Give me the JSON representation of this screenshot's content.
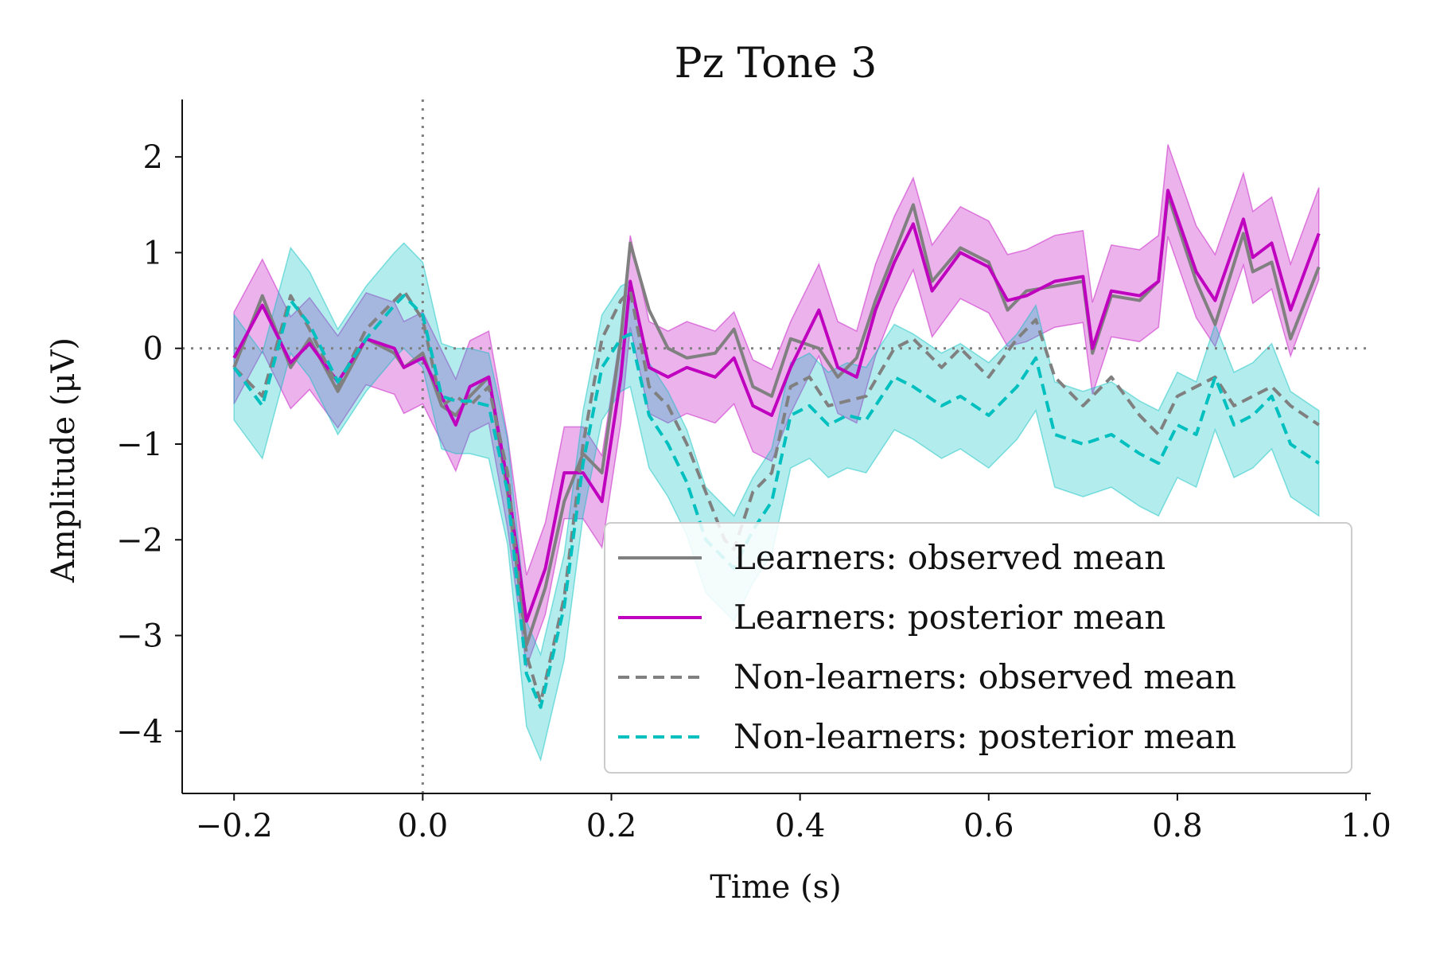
{
  "chart_data": {
    "type": "line",
    "title": "Pz Tone 3",
    "xlabel": "Time (s)",
    "ylabel": "Amplitude (μV)",
    "xlim": [
      -0.255,
      1.005
    ],
    "ylim": [
      -4.65,
      2.6
    ],
    "xticks": [
      -0.2,
      0.0,
      0.2,
      0.4,
      0.6,
      0.8,
      1.0
    ],
    "xtick_labels": [
      "−0.2",
      "0.0",
      "0.2",
      "0.4",
      "0.6",
      "0.8",
      "1.0"
    ],
    "yticks": [
      2,
      1,
      0,
      -1,
      -2,
      -3,
      -4
    ],
    "ytick_labels": [
      "2",
      "1",
      "0",
      "−1",
      "−2",
      "−3",
      "−4"
    ],
    "reference_lines": {
      "x": 0.0,
      "y": 0.0
    },
    "legend_position": "lower-right",
    "series": [
      {
        "name": "Learners: observed mean",
        "color": "#808080",
        "dash": "solid",
        "x": [
          -0.2,
          -0.17,
          -0.14,
          -0.12,
          -0.09,
          -0.06,
          -0.03,
          -0.02,
          0.0,
          0.02,
          0.035,
          0.05,
          0.07,
          0.09,
          0.11,
          0.13,
          0.15,
          0.17,
          0.19,
          0.21,
          0.22,
          0.24,
          0.26,
          0.28,
          0.31,
          0.33,
          0.35,
          0.37,
          0.39,
          0.42,
          0.44,
          0.46,
          0.48,
          0.5,
          0.52,
          0.54,
          0.57,
          0.6,
          0.62,
          0.64,
          0.67,
          0.7,
          0.71,
          0.73,
          0.76,
          0.78,
          0.79,
          0.82,
          0.84,
          0.87,
          0.88,
          0.9,
          0.92,
          0.95
        ],
        "y": [
          -0.2,
          0.55,
          -0.2,
          0.1,
          -0.45,
          0.1,
          -0.05,
          -0.2,
          -0.05,
          -0.6,
          -0.7,
          -0.5,
          -0.3,
          -1.5,
          -3.1,
          -2.5,
          -1.6,
          -1.1,
          -1.3,
          0.1,
          1.1,
          0.4,
          0.0,
          -0.1,
          -0.05,
          0.2,
          -0.4,
          -0.5,
          0.1,
          0.0,
          -0.3,
          -0.1,
          0.5,
          1.0,
          1.5,
          0.7,
          1.05,
          0.9,
          0.4,
          0.6,
          0.65,
          0.7,
          -0.05,
          0.55,
          0.5,
          0.7,
          1.6,
          0.7,
          0.25,
          1.2,
          0.8,
          0.9,
          0.1,
          0.85
        ]
      },
      {
        "name": "Learners: posterior mean",
        "color": "#bf00bf",
        "dash": "solid",
        "x": [
          -0.2,
          -0.17,
          -0.14,
          -0.12,
          -0.09,
          -0.06,
          -0.03,
          -0.02,
          0.0,
          0.02,
          0.035,
          0.05,
          0.07,
          0.09,
          0.11,
          0.13,
          0.15,
          0.17,
          0.19,
          0.21,
          0.22,
          0.24,
          0.26,
          0.28,
          0.31,
          0.33,
          0.35,
          0.37,
          0.39,
          0.42,
          0.44,
          0.46,
          0.48,
          0.5,
          0.52,
          0.54,
          0.57,
          0.6,
          0.62,
          0.64,
          0.67,
          0.7,
          0.71,
          0.73,
          0.76,
          0.78,
          0.79,
          0.82,
          0.84,
          0.87,
          0.88,
          0.9,
          0.92,
          0.95
        ],
        "y": [
          -0.1,
          0.45,
          -0.15,
          0.05,
          -0.35,
          0.1,
          0.0,
          -0.2,
          -0.1,
          -0.5,
          -0.8,
          -0.4,
          -0.3,
          -1.4,
          -2.85,
          -2.3,
          -1.3,
          -1.3,
          -1.6,
          -0.3,
          0.7,
          -0.2,
          -0.3,
          -0.2,
          -0.3,
          -0.1,
          -0.6,
          -0.7,
          -0.2,
          0.4,
          -0.2,
          -0.3,
          0.4,
          0.9,
          1.3,
          0.6,
          1.0,
          0.85,
          0.5,
          0.55,
          0.7,
          0.75,
          0.0,
          0.6,
          0.55,
          0.7,
          1.65,
          0.8,
          0.5,
          1.35,
          0.95,
          1.1,
          0.4,
          1.2
        ]
      },
      {
        "name": "Non-learners: observed mean",
        "color": "#808080",
        "dash": "dashed",
        "x": [
          -0.2,
          -0.17,
          -0.14,
          -0.12,
          -0.09,
          -0.06,
          -0.03,
          -0.02,
          0.0,
          0.02,
          0.035,
          0.05,
          0.07,
          0.09,
          0.11,
          0.125,
          0.15,
          0.17,
          0.19,
          0.21,
          0.22,
          0.24,
          0.26,
          0.28,
          0.3,
          0.32,
          0.33,
          0.35,
          0.37,
          0.39,
          0.41,
          0.43,
          0.45,
          0.47,
          0.5,
          0.52,
          0.55,
          0.57,
          0.6,
          0.63,
          0.65,
          0.67,
          0.7,
          0.73,
          0.76,
          0.78,
          0.8,
          0.82,
          0.84,
          0.86,
          0.88,
          0.9,
          0.92,
          0.95
        ],
        "y": [
          -0.2,
          -0.5,
          0.55,
          0.2,
          -0.4,
          0.2,
          0.5,
          0.6,
          0.3,
          -0.6,
          -0.5,
          -0.6,
          -0.4,
          -1.3,
          -3.2,
          -3.7,
          -2.6,
          -1.0,
          0.1,
          0.5,
          0.6,
          -0.4,
          -0.6,
          -1.0,
          -1.5,
          -2.0,
          -2.1,
          -1.5,
          -1.3,
          -0.4,
          -0.3,
          -0.6,
          -0.55,
          -0.5,
          0.0,
          0.1,
          -0.2,
          0.0,
          -0.3,
          0.1,
          0.3,
          -0.3,
          -0.6,
          -0.3,
          -0.7,
          -0.9,
          -0.5,
          -0.4,
          -0.3,
          -0.6,
          -0.5,
          -0.4,
          -0.6,
          -0.8
        ]
      },
      {
        "name": "Non-learners: posterior mean",
        "color": "#00bfbf",
        "dash": "dashed",
        "x": [
          -0.2,
          -0.17,
          -0.14,
          -0.12,
          -0.09,
          -0.06,
          -0.03,
          -0.02,
          0.0,
          0.02,
          0.035,
          0.05,
          0.07,
          0.09,
          0.11,
          0.125,
          0.15,
          0.17,
          0.19,
          0.21,
          0.22,
          0.24,
          0.26,
          0.28,
          0.3,
          0.32,
          0.33,
          0.35,
          0.37,
          0.39,
          0.41,
          0.43,
          0.45,
          0.47,
          0.5,
          0.52,
          0.55,
          0.57,
          0.6,
          0.63,
          0.65,
          0.67,
          0.7,
          0.73,
          0.76,
          0.78,
          0.8,
          0.82,
          0.84,
          0.86,
          0.88,
          0.9,
          0.92,
          0.95
        ],
        "y": [
          -0.2,
          -0.6,
          0.5,
          0.25,
          -0.35,
          0.1,
          0.45,
          0.55,
          0.35,
          -0.5,
          -0.55,
          -0.55,
          -0.6,
          -1.5,
          -3.4,
          -3.75,
          -2.7,
          -1.2,
          -0.2,
          0.1,
          0.15,
          -0.7,
          -1.0,
          -1.4,
          -2.0,
          -2.2,
          -2.3,
          -1.9,
          -1.6,
          -0.7,
          -0.6,
          -0.8,
          -0.7,
          -0.75,
          -0.3,
          -0.4,
          -0.6,
          -0.5,
          -0.7,
          -0.4,
          -0.1,
          -0.9,
          -1.0,
          -0.9,
          -1.1,
          -1.2,
          -0.8,
          -0.9,
          -0.3,
          -0.8,
          -0.7,
          -0.5,
          -1.0,
          -1.2
        ]
      }
    ],
    "bands": [
      {
        "series": "Learners: posterior mean",
        "color": "#bf00bf",
        "opacity": 0.3,
        "half_width": 0.48
      },
      {
        "series": "Non-learners: posterior mean",
        "color": "#00bfbf",
        "opacity": 0.3,
        "half_width": 0.55
      }
    ]
  }
}
